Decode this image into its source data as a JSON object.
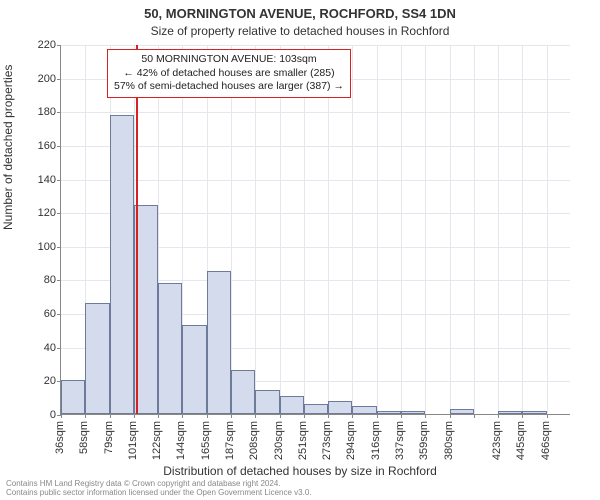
{
  "header": {
    "title_main": "50, MORNINGTON AVENUE, ROCHFORD, SS4 1DN",
    "title_sub": "Size of property relative to detached houses in Rochford"
  },
  "axes": {
    "ylabel": "Number of detached properties",
    "xlabel": "Distribution of detached houses by size in Rochford"
  },
  "chart": {
    "type": "histogram",
    "ylim": [
      0,
      220
    ],
    "yticks": [
      0,
      20,
      40,
      60,
      80,
      100,
      120,
      140,
      160,
      180,
      200,
      220
    ],
    "xticks": [
      "36sqm",
      "58sqm",
      "79sqm",
      "101sqm",
      "122sqm",
      "144sqm",
      "165sqm",
      "187sqm",
      "208sqm",
      "230sqm",
      "251sqm",
      "273sqm",
      "294sqm",
      "316sqm",
      "337sqm",
      "359sqm",
      "380sqm",
      "",
      "423sqm",
      "445sqm",
      "466sqm"
    ],
    "bars": [
      20,
      66,
      178,
      124,
      78,
      53,
      85,
      26,
      14,
      11,
      6,
      8,
      5,
      2,
      2,
      0,
      3,
      0,
      2,
      2,
      0
    ],
    "bar_color": "#d3dbed",
    "bar_border": "#6e7a99",
    "grid_color": "#e6e6ee",
    "axis_color": "#888888",
    "background": "#ffffff"
  },
  "marker": {
    "value_sqm": 103,
    "line_color": "#d62222",
    "callout": {
      "line1": "50 MORNINGTON AVENUE: 103sqm",
      "line2": "← 42% of detached houses are smaller (285)",
      "line3": "57% of semi-detached houses are larger (387) →"
    }
  },
  "attribution": {
    "line1": "Contains HM Land Registry data © Crown copyright and database right 2024.",
    "line2": "Contains public sector information licensed under the Open Government Licence v3.0."
  },
  "style": {
    "title_fontsize": 13,
    "subtitle_fontsize": 12,
    "axis_label_fontsize": 12,
    "tick_fontsize": 11,
    "callout_fontsize": 10.5,
    "attribution_fontsize": 8
  }
}
